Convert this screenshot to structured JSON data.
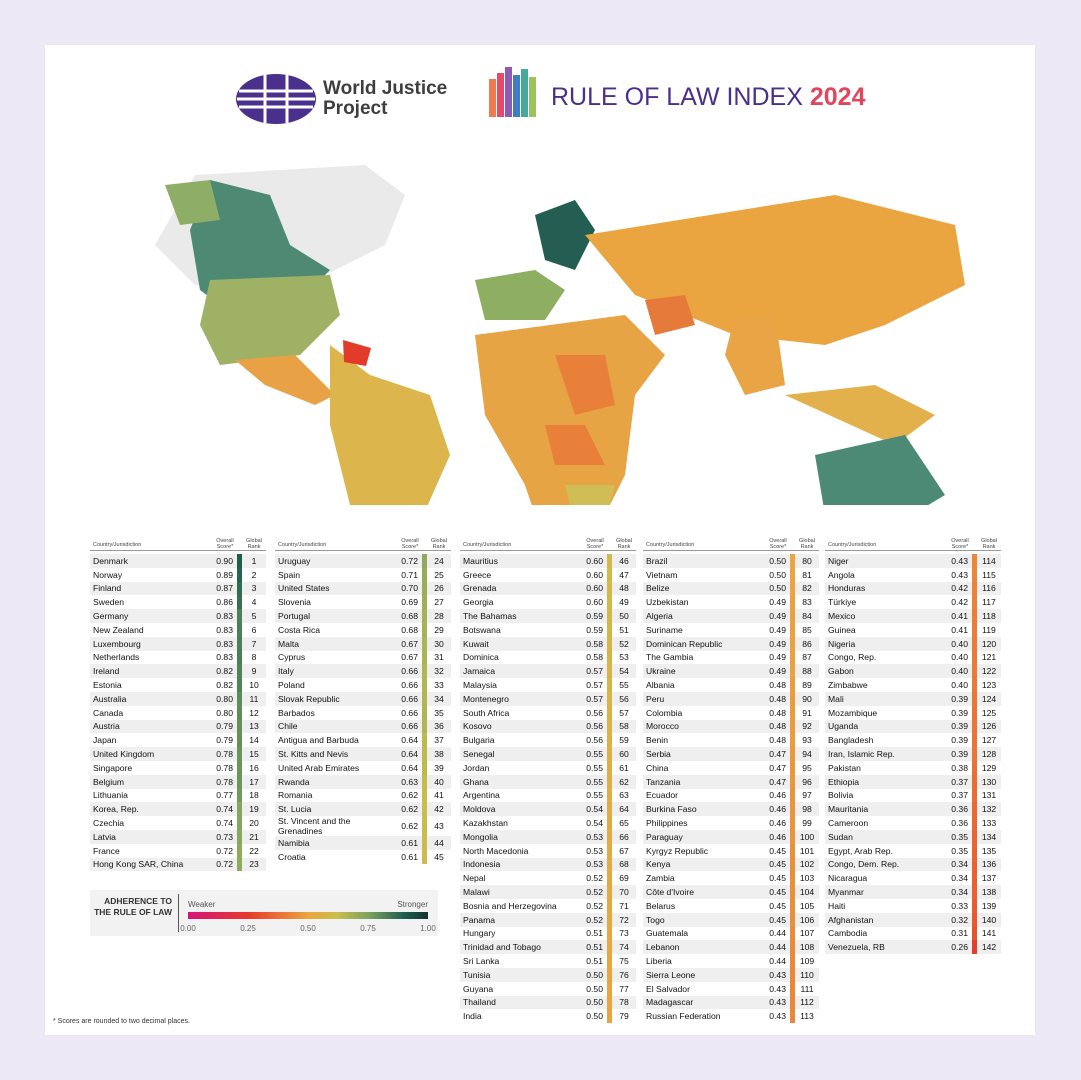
{
  "header": {
    "org": "World Justice Project",
    "title": "RULE OF LAW INDEX",
    "year": "2024"
  },
  "table": {
    "headers": [
      "Country/Jurisdiction",
      "Overall Score*",
      "Global Rank"
    ],
    "columns": [
      [
        [
          "Denmark",
          "0.90",
          1
        ],
        [
          "Norway",
          "0.89",
          2
        ],
        [
          "Finland",
          "0.87",
          3
        ],
        [
          "Sweden",
          "0.86",
          4
        ],
        [
          "Germany",
          "0.83",
          5
        ],
        [
          "New Zealand",
          "0.83",
          6
        ],
        [
          "Luxembourg",
          "0.83",
          7
        ],
        [
          "Netherlands",
          "0.83",
          8
        ],
        [
          "Ireland",
          "0.82",
          9
        ],
        [
          "Estonia",
          "0.82",
          10
        ],
        [
          "Australia",
          "0.80",
          11
        ],
        [
          "Canada",
          "0.80",
          12
        ],
        [
          "Austria",
          "0.79",
          13
        ],
        [
          "Japan",
          "0.79",
          14
        ],
        [
          "United Kingdom",
          "0.78",
          15
        ],
        [
          "Singapore",
          "0.78",
          16
        ],
        [
          "Belgium",
          "0.78",
          17
        ],
        [
          "Lithuania",
          "0.77",
          18
        ],
        [
          "Korea, Rep.",
          "0.74",
          19
        ],
        [
          "Czechia",
          "0.74",
          20
        ],
        [
          "Latvia",
          "0.73",
          21
        ],
        [
          "France",
          "0.72",
          22
        ],
        [
          "Hong Kong SAR, China",
          "0.72",
          23
        ]
      ],
      [
        [
          "Uruguay",
          "0.72",
          24
        ],
        [
          "Spain",
          "0.71",
          25
        ],
        [
          "United States",
          "0.70",
          26
        ],
        [
          "Slovenia",
          "0.69",
          27
        ],
        [
          "Portugal",
          "0.68",
          28
        ],
        [
          "Costa Rica",
          "0.68",
          29
        ],
        [
          "Malta",
          "0.67",
          30
        ],
        [
          "Cyprus",
          "0.67",
          31
        ],
        [
          "Italy",
          "0.66",
          32
        ],
        [
          "Poland",
          "0.66",
          33
        ],
        [
          "Slovak Republic",
          "0.66",
          34
        ],
        [
          "Barbados",
          "0.66",
          35
        ],
        [
          "Chile",
          "0.66",
          36
        ],
        [
          "Antigua and Barbuda",
          "0.64",
          37
        ],
        [
          "St. Kitts and Nevis",
          "0.64",
          38
        ],
        [
          "United Arab Emirates",
          "0.64",
          39
        ],
        [
          "Rwanda",
          "0.63",
          40
        ],
        [
          "Romania",
          "0.62",
          41
        ],
        [
          "St. Lucia",
          "0.62",
          42
        ],
        [
          "St. Vincent and the Grenadines",
          "0.62",
          43
        ],
        [
          "Namibia",
          "0.61",
          44
        ],
        [
          "Croatia",
          "0.61",
          45
        ]
      ],
      [
        [
          "Mauritius",
          "0.60",
          46
        ],
        [
          "Greece",
          "0.60",
          47
        ],
        [
          "Grenada",
          "0.60",
          48
        ],
        [
          "Georgia",
          "0.60",
          49
        ],
        [
          "The Bahamas",
          "0.59",
          50
        ],
        [
          "Botswana",
          "0.59",
          51
        ],
        [
          "Kuwait",
          "0.58",
          52
        ],
        [
          "Dominica",
          "0.58",
          53
        ],
        [
          "Jamaica",
          "0.57",
          54
        ],
        [
          "Malaysia",
          "0.57",
          55
        ],
        [
          "Montenegro",
          "0.57",
          56
        ],
        [
          "South Africa",
          "0.56",
          57
        ],
        [
          "Kosovo",
          "0.56",
          58
        ],
        [
          "Bulgaria",
          "0.56",
          59
        ],
        [
          "Senegal",
          "0.55",
          60
        ],
        [
          "Jordan",
          "0.55",
          61
        ],
        [
          "Ghana",
          "0.55",
          62
        ],
        [
          "Argentina",
          "0.55",
          63
        ],
        [
          "Moldova",
          "0.54",
          64
        ],
        [
          "Kazakhstan",
          "0.54",
          65
        ],
        [
          "Mongolia",
          "0.53",
          66
        ],
        [
          "North Macedonia",
          "0.53",
          67
        ],
        [
          "Indonesia",
          "0.53",
          68
        ],
        [
          "Nepal",
          "0.52",
          69
        ],
        [
          "Malawi",
          "0.52",
          70
        ],
        [
          "Bosnia and Herzegovina",
          "0.52",
          71
        ],
        [
          "Panama",
          "0.52",
          72
        ],
        [
          "Hungary",
          "0.51",
          73
        ],
        [
          "Trinidad and Tobago",
          "0.51",
          74
        ],
        [
          "Sri Lanka",
          "0.51",
          75
        ],
        [
          "Tunisia",
          "0.50",
          76
        ],
        [
          "Guyana",
          "0.50",
          77
        ],
        [
          "Thailand",
          "0.50",
          78
        ],
        [
          "India",
          "0.50",
          79
        ]
      ],
      [
        [
          "Brazil",
          "0.50",
          80
        ],
        [
          "Vietnam",
          "0.50",
          81
        ],
        [
          "Belize",
          "0.50",
          82
        ],
        [
          "Uzbekistan",
          "0.49",
          83
        ],
        [
          "Algeria",
          "0.49",
          84
        ],
        [
          "Suriname",
          "0.49",
          85
        ],
        [
          "Dominican Republic",
          "0.49",
          86
        ],
        [
          "The Gambia",
          "0.49",
          87
        ],
        [
          "Ukraine",
          "0.49",
          88
        ],
        [
          "Albania",
          "0.48",
          89
        ],
        [
          "Peru",
          "0.48",
          90
        ],
        [
          "Colombia",
          "0.48",
          91
        ],
        [
          "Morocco",
          "0.48",
          92
        ],
        [
          "Benin",
          "0.48",
          93
        ],
        [
          "Serbia",
          "0.47",
          94
        ],
        [
          "China",
          "0.47",
          95
        ],
        [
          "Tanzania",
          "0.47",
          96
        ],
        [
          "Ecuador",
          "0.46",
          97
        ],
        [
          "Burkina Faso",
          "0.46",
          98
        ],
        [
          "Philippines",
          "0.46",
          99
        ],
        [
          "Paraguay",
          "0.46",
          100
        ],
        [
          "Kyrgyz Republic",
          "0.45",
          101
        ],
        [
          "Kenya",
          "0.45",
          102
        ],
        [
          "Zambia",
          "0.45",
          103
        ],
        [
          "Côte d'Ivoire",
          "0.45",
          104
        ],
        [
          "Belarus",
          "0.45",
          105
        ],
        [
          "Togo",
          "0.45",
          106
        ],
        [
          "Guatemala",
          "0.44",
          107
        ],
        [
          "Lebanon",
          "0.44",
          108
        ],
        [
          "Liberia",
          "0.44",
          109
        ],
        [
          "Sierra Leone",
          "0.43",
          110
        ],
        [
          "El Salvador",
          "0.43",
          111
        ],
        [
          "Madagascar",
          "0.43",
          112
        ],
        [
          "Russian Federation",
          "0.43",
          113
        ]
      ],
      [
        [
          "Niger",
          "0.43",
          114
        ],
        [
          "Angola",
          "0.43",
          115
        ],
        [
          "Honduras",
          "0.42",
          116
        ],
        [
          "Türkiye",
          "0.42",
          117
        ],
        [
          "Mexico",
          "0.41",
          118
        ],
        [
          "Guinea",
          "0.41",
          119
        ],
        [
          "Nigeria",
          "0.40",
          120
        ],
        [
          "Congo, Rep.",
          "0.40",
          121
        ],
        [
          "Gabon",
          "0.40",
          122
        ],
        [
          "Zimbabwe",
          "0.40",
          123
        ],
        [
          "Mali",
          "0.39",
          124
        ],
        [
          "Mozambique",
          "0.39",
          125
        ],
        [
          "Uganda",
          "0.39",
          126
        ],
        [
          "Bangladesh",
          "0.39",
          127
        ],
        [
          "Iran, Islamic Rep.",
          "0.39",
          128
        ],
        [
          "Pakistan",
          "0.38",
          129
        ],
        [
          "Ethiopia",
          "0.37",
          130
        ],
        [
          "Bolivia",
          "0.37",
          131
        ],
        [
          "Mauritania",
          "0.36",
          132
        ],
        [
          "Cameroon",
          "0.36",
          133
        ],
        [
          "Sudan",
          "0.35",
          134
        ],
        [
          "Egypt, Arab Rep.",
          "0.35",
          135
        ],
        [
          "Congo, Dem. Rep.",
          "0.34",
          136
        ],
        [
          "Nicaragua",
          "0.34",
          137
        ],
        [
          "Myanmar",
          "0.34",
          138
        ],
        [
          "Haiti",
          "0.33",
          139
        ],
        [
          "Afghanistan",
          "0.32",
          140
        ],
        [
          "Cambodia",
          "0.31",
          141
        ],
        [
          "Venezuela, RB",
          "0.26",
          142
        ]
      ]
    ]
  },
  "legend": {
    "title": "ADHERENCE TO THE RULE OF LAW",
    "low": "Weaker",
    "high": "Stronger",
    "ticks": [
      {
        "value": 0,
        "label": "0.00"
      },
      {
        "value": 0.25,
        "label": "0.25"
      },
      {
        "value": 0.5,
        "label": "0.50"
      },
      {
        "value": 0.75,
        "label": "0.75"
      },
      {
        "value": 1,
        "label": "1.00"
      }
    ]
  },
  "footnote": "* Scores are rounded to two decimal places."
}
